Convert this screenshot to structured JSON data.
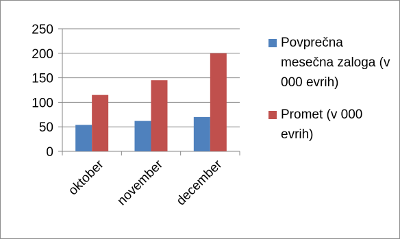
{
  "chart_data": {
    "type": "bar",
    "categories": [
      "oktober",
      "november",
      "december"
    ],
    "series": [
      {
        "name": "Povprečna mesečna zaloga (v 000 evrih)",
        "values": [
          54,
          62,
          70
        ],
        "color": "#4f81bd"
      },
      {
        "name": "Promet (v 000 evrih)",
        "values": [
          115,
          145,
          200
        ],
        "color": "#c0504d"
      }
    ],
    "ylim": [
      0,
      250
    ],
    "yticks": [
      0,
      50,
      100,
      150,
      200,
      250
    ],
    "grid": true,
    "legend": "right"
  }
}
